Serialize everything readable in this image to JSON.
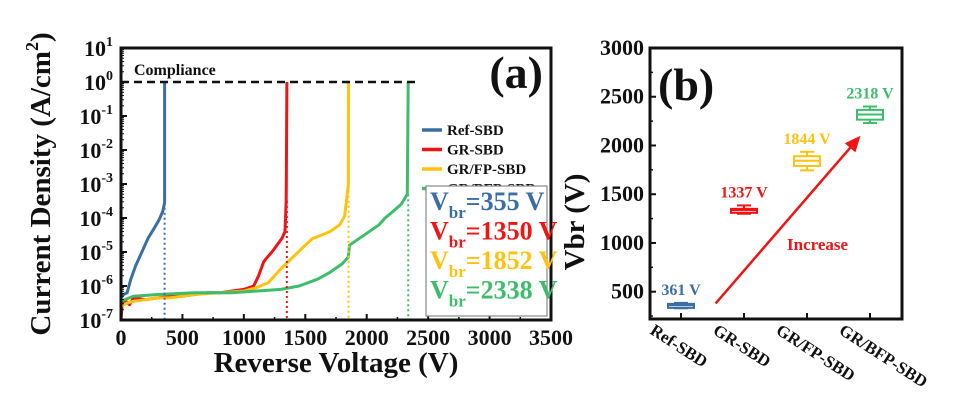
{
  "colors": {
    "ref": "#3b6ea5",
    "gr": "#f01414",
    "gr_fp": "#ffc20e",
    "gr_bfp": "#3dbd6b",
    "axis": "#111111",
    "arrow": "#f01414"
  },
  "chart_data": [
    {
      "type": "line",
      "panel_label": "(a)",
      "title": "",
      "xlabel": "Reverse Voltage (V)",
      "ylabel": "Current Density (A/cm",
      "ylabel_sup": "2",
      "ylabel_end": ")",
      "xlim": [
        0,
        3500
      ],
      "ylim_log10": [
        -7,
        1
      ],
      "yscale": "log",
      "x_ticks": [
        0,
        500,
        1000,
        1500,
        2000,
        2500,
        3000,
        3500
      ],
      "x_tick_labels": [
        "0",
        "500",
        "1000",
        "1500",
        "2000",
        "2500",
        "3000",
        "3500"
      ],
      "y_ticks_log10": [
        1,
        0,
        -1,
        -2,
        -3,
        -4,
        -5,
        -6,
        -7
      ],
      "y_tick_labels": [
        {
          "base": "10",
          "exp": "1"
        },
        {
          "base": "10",
          "exp": "0"
        },
        {
          "base": "10",
          "exp": "-1"
        },
        {
          "base": "10",
          "exp": "-2"
        },
        {
          "base": "10",
          "exp": "-3"
        },
        {
          "base": "10",
          "exp": "-4"
        },
        {
          "base": "10",
          "exp": "-5"
        },
        {
          "base": "10",
          "exp": "-6"
        },
        {
          "base": "10",
          "exp": "-7"
        }
      ],
      "compliance": {
        "label": "Compliance",
        "y_log10": 0,
        "x_range": [
          0,
          2400
        ]
      },
      "legend": {
        "placement": "right-middle",
        "entries": [
          "Ref-SBD",
          "GR-SBD",
          "GR/FP-SBD",
          "GR/BFP-SBD"
        ]
      },
      "series": [
        {
          "name": "Ref-SBD",
          "color_key": "ref",
          "breakdown_v": 355,
          "points_log10": [
            [
              0,
              -6.35
            ],
            [
              20,
              -6.25
            ],
            [
              50,
              -6.2
            ],
            [
              80,
              -5.8
            ],
            [
              120,
              -5.4
            ],
            [
              170,
              -5.0
            ],
            [
              220,
              -4.6
            ],
            [
              270,
              -4.3
            ],
            [
              310,
              -4.05
            ],
            [
              340,
              -3.8
            ],
            [
              355,
              -3.55
            ],
            [
              355,
              0
            ]
          ]
        },
        {
          "name": "GR-SBD",
          "color_key": "gr",
          "breakdown_v": 1350,
          "points_log10": [
            [
              0,
              -7
            ],
            [
              10,
              -6.5
            ],
            [
              40,
              -6.45
            ],
            [
              70,
              -6.55
            ],
            [
              100,
              -6.35
            ],
            [
              200,
              -6.4
            ],
            [
              300,
              -6.35
            ],
            [
              400,
              -6.3
            ],
            [
              500,
              -6.3
            ],
            [
              600,
              -6.25
            ],
            [
              700,
              -6.2
            ],
            [
              800,
              -6.2
            ],
            [
              900,
              -6.15
            ],
            [
              1000,
              -6.1
            ],
            [
              1080,
              -6.0
            ],
            [
              1120,
              -5.7
            ],
            [
              1160,
              -5.3
            ],
            [
              1180,
              -5.2
            ],
            [
              1240,
              -4.95
            ],
            [
              1310,
              -4.6
            ],
            [
              1335,
              -4.4
            ],
            [
              1345,
              -3.5
            ],
            [
              1350,
              0
            ]
          ]
        },
        {
          "name": "GR/FP-SBD",
          "color_key": "gr_fp",
          "breakdown_v": 1852,
          "points_log10": [
            [
              0,
              -6.6
            ],
            [
              50,
              -6.5
            ],
            [
              100,
              -6.45
            ],
            [
              200,
              -6.4
            ],
            [
              300,
              -6.35
            ],
            [
              400,
              -6.35
            ],
            [
              600,
              -6.25
            ],
            [
              800,
              -6.2
            ],
            [
              1000,
              -6.15
            ],
            [
              1100,
              -6.05
            ],
            [
              1200,
              -5.9
            ],
            [
              1300,
              -5.5
            ],
            [
              1400,
              -5.15
            ],
            [
              1500,
              -4.8
            ],
            [
              1560,
              -4.6
            ],
            [
              1600,
              -4.55
            ],
            [
              1700,
              -4.4
            ],
            [
              1780,
              -4.2
            ],
            [
              1820,
              -3.95
            ],
            [
              1850,
              -3.05
            ],
            [
              1852,
              0
            ]
          ]
        },
        {
          "name": "GR/BFP-SBD",
          "color_key": "gr_bfp",
          "breakdown_v": 2338,
          "points_log10": [
            [
              0,
              -6.45
            ],
            [
              100,
              -6.3
            ],
            [
              300,
              -6.25
            ],
            [
              600,
              -6.2
            ],
            [
              900,
              -6.2
            ],
            [
              1100,
              -6.15
            ],
            [
              1300,
              -6.1
            ],
            [
              1450,
              -6.0
            ],
            [
              1600,
              -5.8
            ],
            [
              1700,
              -5.6
            ],
            [
              1800,
              -5.35
            ],
            [
              1850,
              -5.15
            ],
            [
              1860,
              -4.8
            ],
            [
              1900,
              -4.7
            ],
            [
              2000,
              -4.45
            ],
            [
              2100,
              -4.2
            ],
            [
              2150,
              -4.0
            ],
            [
              2200,
              -3.85
            ],
            [
              2280,
              -3.6
            ],
            [
              2330,
              -3.3
            ],
            [
              2338,
              0
            ]
          ]
        }
      ],
      "breakdown_annotations": [
        {
          "prefix": "V",
          "sub": "br",
          "text": "=355 V",
          "color_key": "ref"
        },
        {
          "prefix": "V",
          "sub": "br",
          "text": "=1350 V",
          "color_key": "gr"
        },
        {
          "prefix": "V",
          "sub": "br",
          "text": "=1852 V",
          "color_key": "gr_fp"
        },
        {
          "prefix": "V",
          "sub": "br",
          "text": "=2338 V",
          "color_key": "gr_bfp"
        }
      ],
      "grid": false
    },
    {
      "type": "box",
      "panel_label": "(b)",
      "title": "",
      "xlabel": "",
      "ylabel": "Vbr (V)",
      "ylim": [
        220,
        3000
      ],
      "y_ticks": [
        500,
        1000,
        1500,
        2000,
        2500,
        3000
      ],
      "y_tick_labels": [
        "500",
        "1000",
        "1500",
        "2000",
        "2500",
        "3000"
      ],
      "categories": [
        "Ref-SBD",
        "GR-SBD",
        "GR/FP-SBD",
        "GR/BFP-SBD"
      ],
      "boxes": [
        {
          "category": "Ref-SBD",
          "label": "361 V",
          "color_key": "ref",
          "min": 330,
          "q1": 345,
          "median": 361,
          "q3": 375,
          "max": 385
        },
        {
          "category": "GR-SBD",
          "label": "1337 V",
          "color_key": "gr",
          "min": 1300,
          "q1": 1318,
          "median": 1337,
          "q3": 1350,
          "max": 1385
        },
        {
          "category": "GR/FP-SBD",
          "label": "1844 V",
          "color_key": "gr_fp",
          "min": 1745,
          "q1": 1790,
          "median": 1844,
          "q3": 1890,
          "max": 1935
        },
        {
          "category": "GR/BFP-SBD",
          "label": "2318 V",
          "color_key": "gr_bfp",
          "min": 2230,
          "q1": 2265,
          "median": 2318,
          "q3": 2365,
          "max": 2400
        }
      ],
      "annotation": {
        "text": "Increase",
        "arrow_from": {
          "category_index": 0.55,
          "value": 380
        },
        "arrow_to": {
          "category_index": 2.85,
          "value": 2100
        }
      },
      "grid": false
    }
  ]
}
